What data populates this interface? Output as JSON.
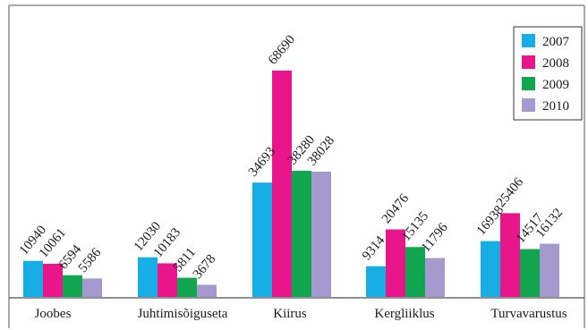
{
  "chart_data": {
    "type": "bar",
    "categories": [
      "Joobes",
      "Juhtimisõiguseta",
      "Kiirus",
      "Kergliiklus",
      "Turvavarustus"
    ],
    "series": [
      {
        "name": "2007",
        "color": "#17aee6",
        "values": [
          10940,
          12030,
          34693,
          9314,
          16938
        ]
      },
      {
        "name": "2008",
        "color": "#e8168a",
        "values": [
          10061,
          10183,
          68690,
          20476,
          25406
        ]
      },
      {
        "name": "2009",
        "color": "#13a651",
        "values": [
          6594,
          5811,
          38280,
          15135,
          14517
        ]
      },
      {
        "name": "2010",
        "color": "#a49ad0",
        "values": [
          5586,
          3678,
          38028,
          11796,
          16132
        ]
      }
    ],
    "title": "",
    "xlabel": "",
    "ylabel": "",
    "ylim": [
      0,
      70000
    ],
    "grid": false,
    "legend_position": "top-right",
    "data_labels": "rotated above bars"
  }
}
